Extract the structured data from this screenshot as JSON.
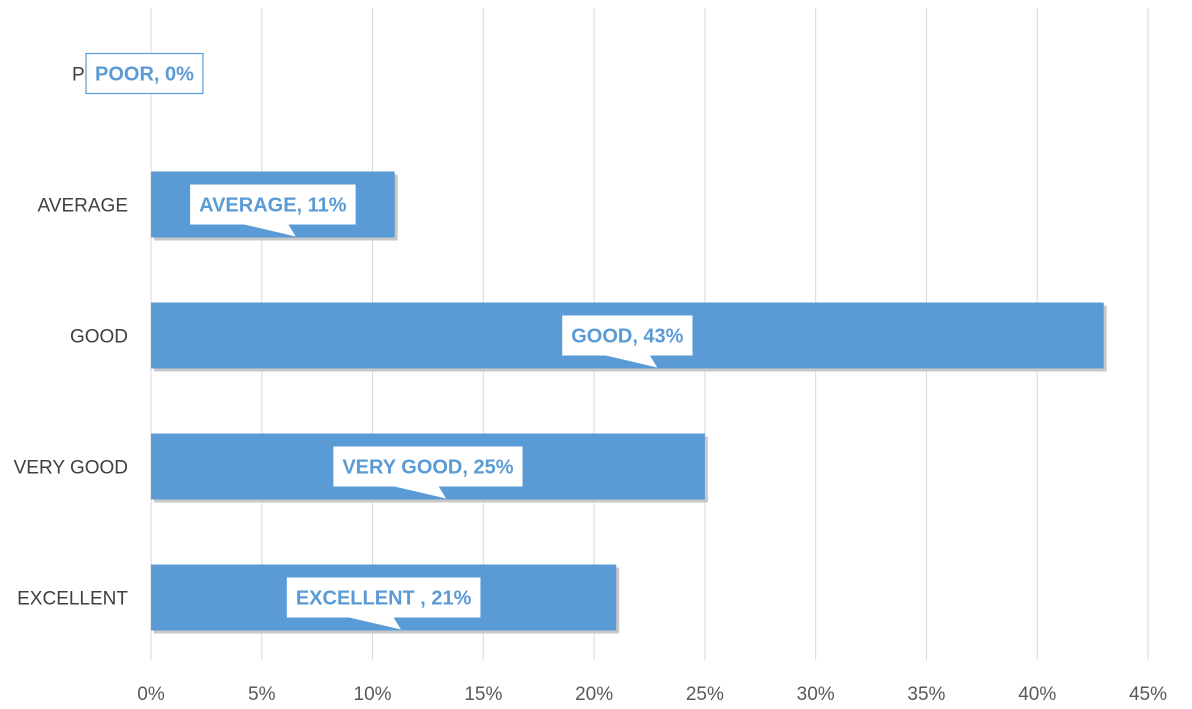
{
  "chart_data": {
    "type": "bar",
    "orientation": "horizontal",
    "categories": [
      "POOR",
      "AVERAGE",
      "GOOD",
      "VERY GOOD",
      "EXCELLENT"
    ],
    "values": [
      0,
      11,
      43,
      25,
      21
    ],
    "data_labels": [
      "POOR, 0%",
      "AVERAGE, 11%",
      "GOOD, 43%",
      "VERY GOOD, 25%",
      "EXCELLENT , 21%"
    ],
    "x_ticks": [
      "0%",
      "5%",
      "10%",
      "15%",
      "20%",
      "25%",
      "30%",
      "35%",
      "40%",
      "45%"
    ],
    "xlim": [
      0,
      45
    ],
    "title": "",
    "xlabel": "",
    "ylabel": "",
    "grid": "vertical",
    "legend": "none",
    "bar_color": "#5b9bd5",
    "label_color": "#5b9bd5"
  }
}
